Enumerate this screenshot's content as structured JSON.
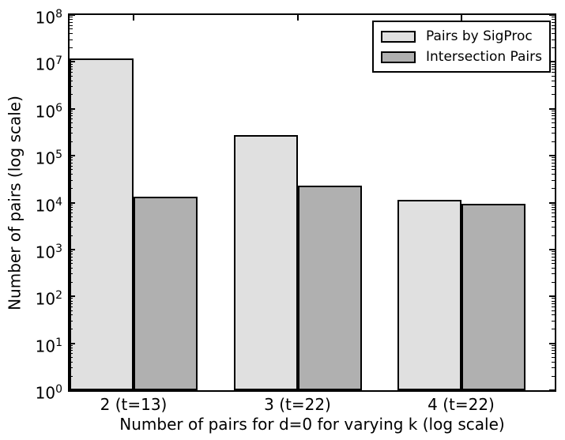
{
  "chart_data": {
    "type": "bar",
    "title": "",
    "xlabel": "Number of pairs for d=0 for varying k (log scale)",
    "ylabel": "Number of pairs (log scale)",
    "categories": [
      "2 (t=13)",
      "3 (t=22)",
      "4 (t=22)"
    ],
    "series": [
      {
        "name": "Pairs by SigProc",
        "color": "#e0e0e0",
        "values": [
          12000000,
          280000,
          11500
        ]
      },
      {
        "name": "Intersection Pairs",
        "color": "#b0b0b0",
        "values": [
          13500,
          23000,
          9500
        ]
      }
    ],
    "yscale": "log",
    "ylim": [
      1,
      100000000
    ],
    "y_tick_exponents": [
      0,
      1,
      2,
      3,
      4,
      5,
      6,
      7,
      8
    ],
    "bar_edge_color": "#000000",
    "grid": false,
    "legend_position": "upper right"
  }
}
